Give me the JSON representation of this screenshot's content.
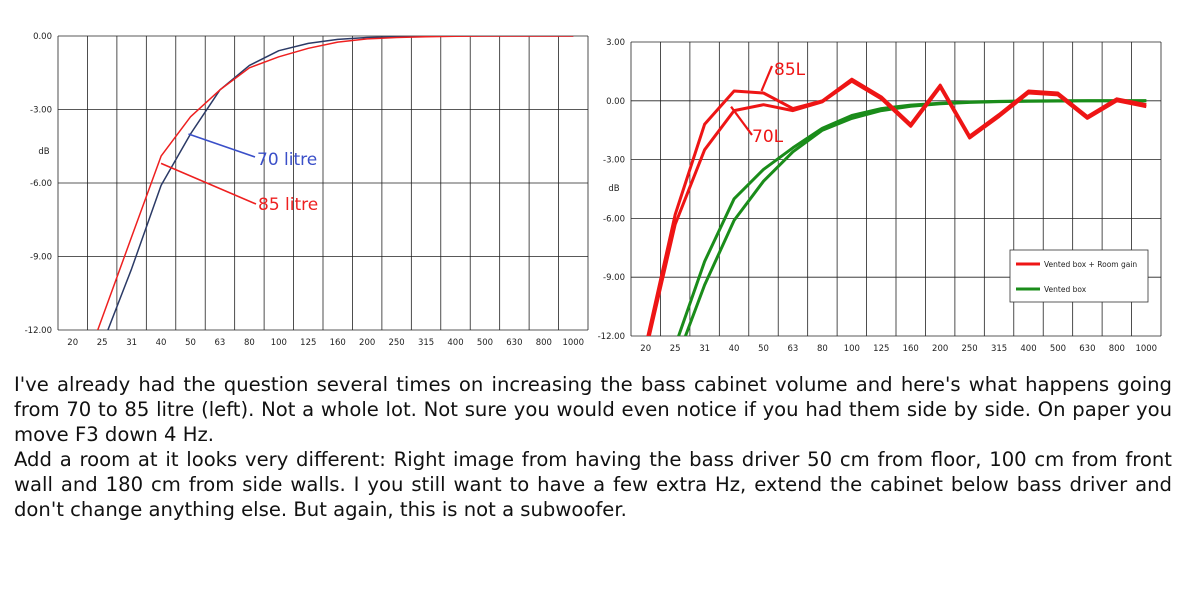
{
  "chart_data": [
    {
      "type": "line",
      "x": [
        "20",
        "25",
        "31",
        "40",
        "50",
        "63",
        "80",
        "100",
        "125",
        "160",
        "200",
        "250",
        "315",
        "400",
        "500",
        "630",
        "800",
        "1000"
      ],
      "ylabel": "dB",
      "ylim": [
        -12,
        0
      ],
      "yticks": [
        "0.00",
        "-3.00",
        "-6.00",
        "-9.00",
        "-12.00"
      ],
      "grid": true,
      "series": [
        {
          "name": "85 litre",
          "color": "#ee2020",
          "values": [
            -14.8,
            -11.5,
            -8.2,
            -4.9,
            -3.3,
            -2.2,
            -1.3,
            -0.85,
            -0.5,
            -0.25,
            -0.12,
            -0.06,
            -0.03,
            -0.01,
            0,
            0,
            0,
            0
          ]
        },
        {
          "name": "70 litre",
          "color": "#2b3a66",
          "values": [
            -15.8,
            -12.6,
            -9.5,
            -6.1,
            -4.0,
            -2.2,
            -1.2,
            -0.6,
            -0.3,
            -0.14,
            -0.06,
            -0.03,
            -0.01,
            0,
            0,
            0,
            0,
            0
          ]
        }
      ],
      "annotations": [
        {
          "text": "70 litre",
          "color": "#3a4fc8"
        },
        {
          "text": "85 litre",
          "color": "#ee2020"
        }
      ]
    },
    {
      "type": "line",
      "x": [
        "20",
        "25",
        "31",
        "40",
        "50",
        "63",
        "80",
        "100",
        "125",
        "160",
        "200",
        "250",
        "315",
        "400",
        "500",
        "630",
        "800",
        "1000"
      ],
      "ylabel": "dB",
      "ylim": [
        -12,
        3
      ],
      "yticks": [
        "3.00",
        "0.00",
        "-3.00",
        "-6.00",
        "-9.00",
        "-12.00"
      ],
      "grid": true,
      "legend_position": "right",
      "series": [
        {
          "name": "Vented box + Room gain",
          "color": "#ee1515",
          "values": [
            -12.5,
            -5.8,
            -1.2,
            0.5,
            0.4,
            -0.4,
            0.0,
            1.1,
            0.2,
            -1.2,
            0.8,
            -1.8,
            -0.7,
            0.5,
            0.4,
            -0.8,
            0.1,
            -0.2
          ]
        },
        {
          "name": "Vented box + Room gain (70 litre)",
          "color": "#ee1515",
          "values": [
            -12.8,
            -6.3,
            -2.5,
            -0.5,
            -0.2,
            -0.5,
            -0.05,
            1.0,
            0.1,
            -1.3,
            0.7,
            -1.9,
            -0.8,
            0.4,
            0.3,
            -0.9,
            0.0,
            -0.3
          ]
        },
        {
          "name": "Vented box",
          "color": "#1a8c1a",
          "values": [
            -16,
            -12.5,
            -8.2,
            -5.0,
            -3.5,
            -2.4,
            -1.4,
            -0.75,
            -0.4,
            -0.22,
            -0.12,
            -0.06,
            -0.03,
            -0.01,
            0,
            0,
            0,
            0
          ]
        },
        {
          "name": "Vented box (70 litre)",
          "color": "#1a8c1a",
          "values": [
            -17,
            -13.4,
            -9.4,
            -6.1,
            -4.1,
            -2.6,
            -1.5,
            -0.9,
            -0.5,
            -0.28,
            -0.15,
            -0.08,
            -0.04,
            -0.02,
            -0.01,
            0,
            0,
            0
          ]
        }
      ],
      "legend": [
        {
          "text": "Vented box + Room gain",
          "color": "#ee1515"
        },
        {
          "text": "Vented box",
          "color": "#1a8c1a"
        }
      ],
      "annotations": [
        {
          "text": "85L",
          "color": "#ee1515"
        },
        {
          "text": "70L",
          "color": "#ee1515"
        }
      ]
    }
  ],
  "caption": {
    "p1": "I've already had the question several times on increasing the bass cabinet volume and here's what happens going from 70 to 85 litre (left). Not a whole lot. Not sure you would even notice if you had them side by side. On paper you move F3 down 4 Hz.",
    "p2": "Add a room at it looks very different: Right image from having the bass driver 50 cm from floor, 100 cm from front wall and 180 cm from side walls. I you still want to have a few extra Hz, extend the cabinet below bass driver and don't change anything else. But again, this is not a subwoofer."
  }
}
